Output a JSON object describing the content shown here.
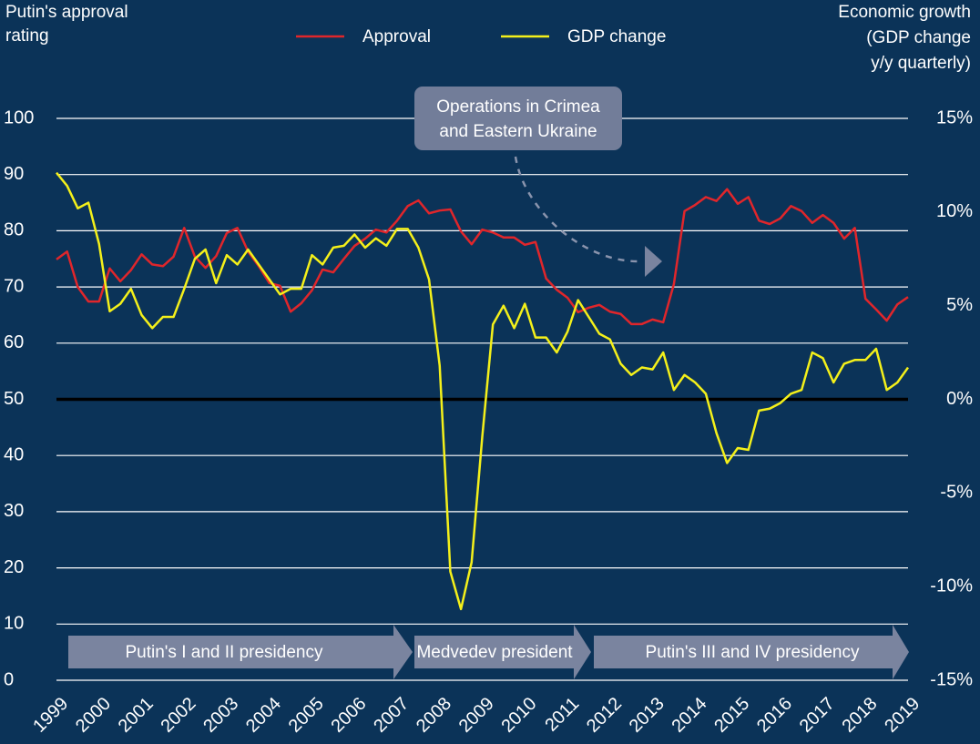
{
  "chart_data": {
    "type": "line",
    "y_axis_title": [
      "Putin's approval",
      "rating"
    ],
    "y2_axis_title": [
      "Economic growth",
      "(GDP change",
      "y/y quarterly)"
    ],
    "x": [
      1999,
      1999.25,
      1999.5,
      1999.75,
      2000,
      2000.25,
      2000.5,
      2000.75,
      2001,
      2001.25,
      2001.5,
      2001.75,
      2002,
      2002.25,
      2002.5,
      2002.75,
      2003,
      2003.25,
      2003.5,
      2003.75,
      2004,
      2004.25,
      2004.5,
      2004.75,
      2005,
      2005.25,
      2005.5,
      2005.75,
      2006,
      2006.25,
      2006.5,
      2006.75,
      2007,
      2007.25,
      2007.5,
      2007.75,
      2008,
      2008.25,
      2008.5,
      2008.75,
      2009,
      2009.25,
      2009.5,
      2009.75,
      2010,
      2010.25,
      2010.5,
      2010.75,
      2011,
      2011.25,
      2011.5,
      2011.75,
      2012,
      2012.25,
      2012.5,
      2012.75,
      2013,
      2013.25,
      2013.5,
      2013.75,
      2014,
      2014.25,
      2014.5,
      2014.75,
      2015,
      2015.25,
      2015.5,
      2015.75,
      2016,
      2016.25,
      2016.5,
      2016.75,
      2017,
      2017.25,
      2017.5,
      2017.75,
      2018,
      2018.25,
      2018.5,
      2018.75,
      2019
    ],
    "series": [
      {
        "name": "Approval",
        "color": "#e0262b",
        "axis": "y",
        "values": [
          74.9,
          76.3,
          70,
          67.4,
          67.4,
          73.3,
          71,
          73,
          75.8,
          74,
          73.7,
          75.4,
          80.5,
          75.4,
          73.4,
          75.5,
          79.6,
          80.5,
          76.3,
          73.7,
          70.7,
          70.2,
          65.6,
          67.1,
          69.4,
          73.1,
          72.6,
          75,
          77.3,
          78.6,
          80.2,
          79.7,
          81.8,
          84.4,
          85.4,
          83.1,
          83.6,
          83.8,
          79.9,
          77.6,
          80.2,
          79.7,
          78.8,
          78.8,
          77.5,
          78,
          71.5,
          69.5,
          68.1,
          65.5,
          66.3,
          66.8,
          65.6,
          65.2,
          63.4,
          63.4,
          64.2,
          63.7,
          70.5,
          83.5,
          84.6,
          86,
          85.3,
          87.4,
          84.8,
          86,
          81.8,
          81.2,
          82.2,
          84.4,
          83.5,
          81.4,
          82.8,
          81.4,
          78.6,
          80.5,
          67.9,
          66,
          64,
          66.9,
          68.2
        ]
      },
      {
        "name": "GDP change",
        "color": "#f4f01a",
        "axis": "y2",
        "values": [
          12.1,
          11.4,
          10.2,
          10.5,
          8.3,
          4.7,
          5.1,
          5.9,
          4.5,
          3.8,
          4.4,
          4.4,
          5.9,
          7.5,
          8,
          6.2,
          7.7,
          7.2,
          8,
          7.2,
          6.4,
          5.6,
          5.9,
          5.9,
          7.7,
          7.2,
          8.1,
          8.2,
          8.8,
          8.1,
          8.6,
          8.2,
          9.1,
          9.1,
          8.1,
          6.4,
          1.8,
          -9.2,
          -11.2,
          -8.7,
          -2,
          4,
          5,
          3.8,
          5.1,
          3.3,
          3.3,
          2.5,
          3.6,
          5.3,
          4.4,
          3.5,
          3.2,
          1.9,
          1.3,
          1.7,
          1.6,
          2.5,
          0.5,
          1.3,
          0.9,
          0.3,
          -1.8,
          -3.4,
          -2.6,
          -2.7,
          -0.6,
          -0.5,
          -0.2,
          0.3,
          0.5,
          2.5,
          2.2,
          0.9,
          1.9,
          2.1,
          2.1,
          2.7,
          0.5,
          0.9,
          1.7
        ]
      }
    ],
    "xlim": [
      1999,
      2019
    ],
    "xticks": [
      1999,
      2000,
      2001,
      2002,
      2003,
      2004,
      2005,
      2006,
      2007,
      2008,
      2009,
      2010,
      2011,
      2012,
      2013,
      2014,
      2015,
      2016,
      2017,
      2018,
      2019
    ],
    "ylim": [
      0,
      100
    ],
    "yticks": [
      0,
      10,
      20,
      30,
      40,
      50,
      60,
      70,
      80,
      90,
      100
    ],
    "y2lim": [
      -15,
      15
    ],
    "y2ticks": [
      {
        "value": 15,
        "label": "15%"
      },
      {
        "value": 10,
        "label": "10%"
      },
      {
        "value": 5,
        "label": "5%"
      },
      {
        "value": 0,
        "label": "0%"
      },
      {
        "value": -5,
        "label": "-5%"
      },
      {
        "value": -10,
        "label": "-10%"
      },
      {
        "value": -15,
        "label": "-15%"
      }
    ],
    "grid": true,
    "reference_line": {
      "axis": "y2",
      "value": 0,
      "color": "#000000"
    },
    "annotation": [
      "Operations in Crimea",
      "and Eastern Ukraine"
    ],
    "periods": [
      "Putin's I and II presidency",
      "Medvedev president",
      "Putin's III and IV presidency"
    ]
  }
}
